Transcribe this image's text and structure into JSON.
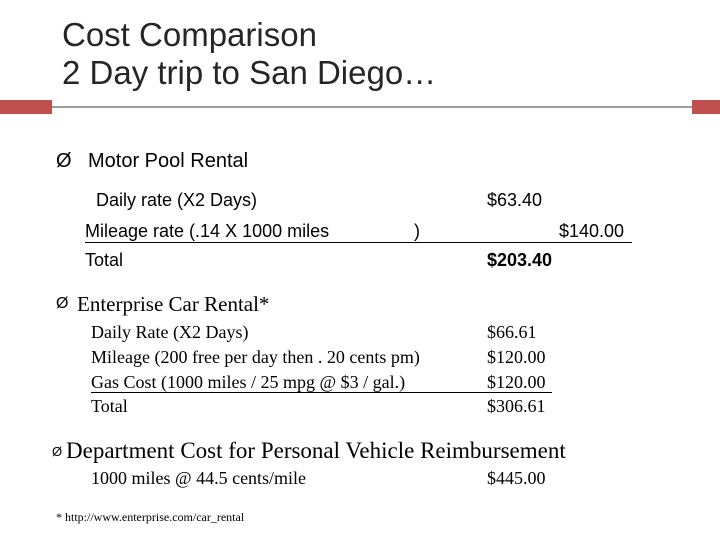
{
  "slide": {
    "title_line1": "Cost Comparison",
    "title_line2": "2 Day trip to San Diego…",
    "bullet_glyph": "Ø",
    "motor_pool": {
      "heading": "Motor Pool Rental",
      "daily_rate_label": "Daily rate   (X2 Days)",
      "daily_rate_value": "$63.40",
      "mileage_label": "Mileage rate (.14 X 1000 miles",
      "mileage_paren": ")",
      "mileage_value": "$140.00",
      "total_label": "Total",
      "total_value": "$203.40"
    },
    "enterprise": {
      "heading": "Enterprise Car Rental*",
      "daily_rate_label": "Daily Rate    (X2 Days)",
      "daily_rate_value": "$66.61",
      "mileage_label": "Mileage  (200 free per day then . 20 cents pm)",
      "mileage_value": "$120.00",
      "gas_label": "Gas Cost  (1000 miles / 25 mpg @ $3 / gal.)",
      "gas_value": "$120.00",
      "total_label": "Total",
      "total_value": "$306.61"
    },
    "department": {
      "heading": "Department Cost for Personal Vehicle Reimbursement",
      "line_label": "1000 miles @ 44.5 cents/mile",
      "line_value": "$445.00"
    },
    "footnote": "* http://www.enterprise.com/car_rental"
  }
}
